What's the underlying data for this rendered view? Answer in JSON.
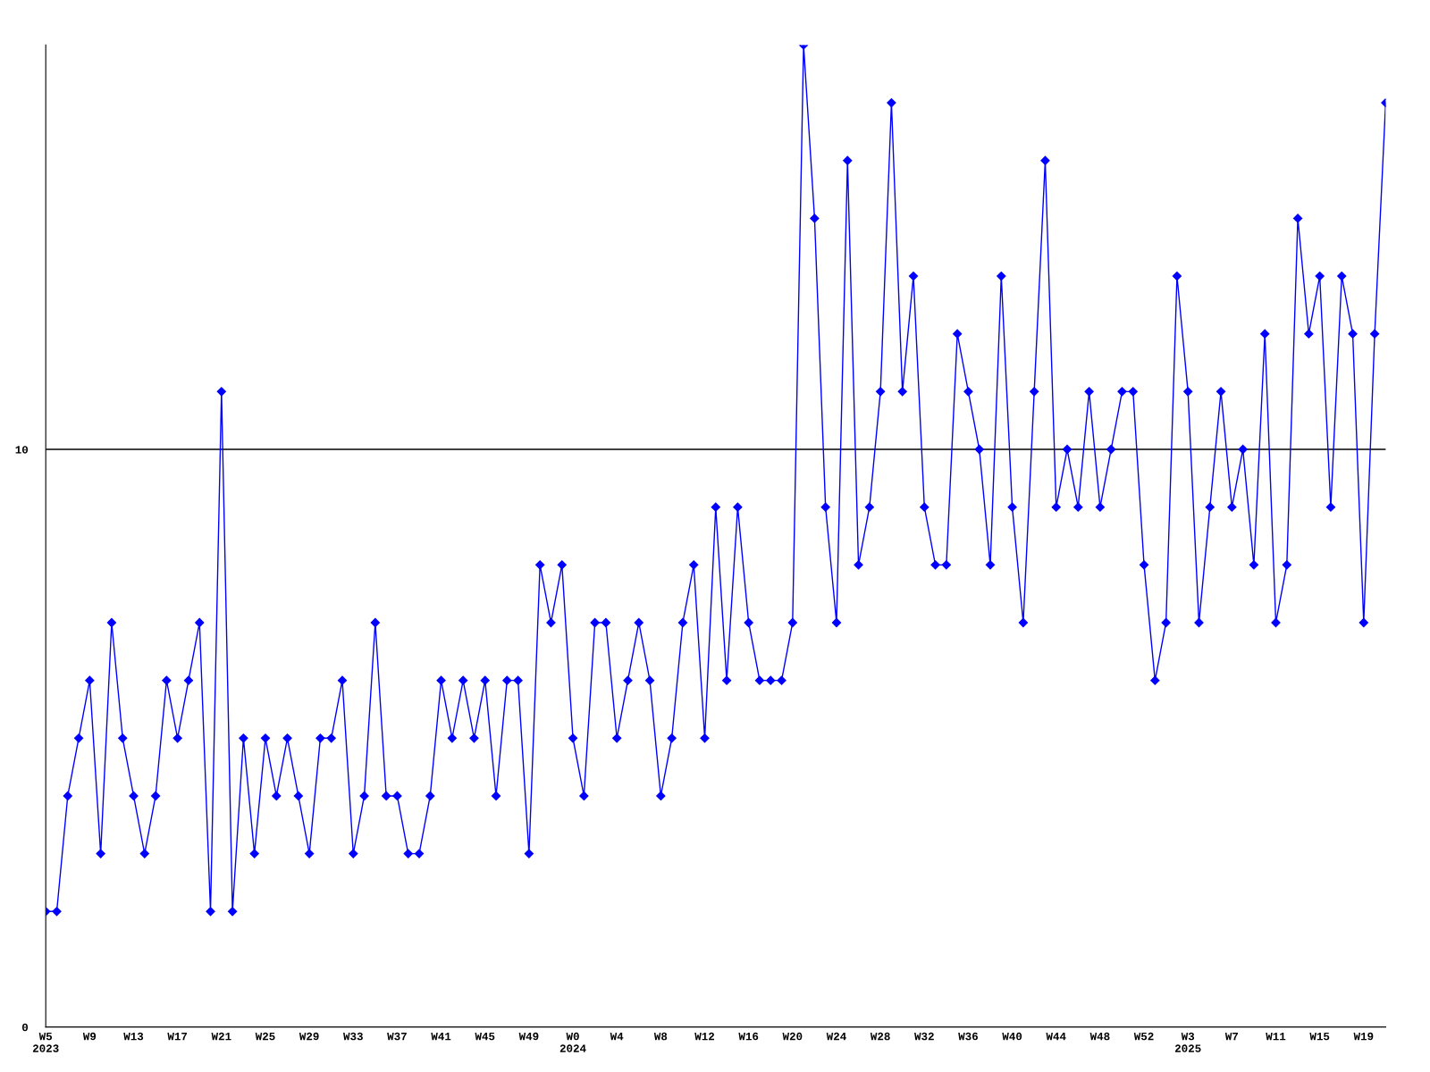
{
  "chart_data": {
    "type": "line",
    "categories": [
      "W5\n2023",
      null,
      null,
      null,
      "W9",
      null,
      null,
      null,
      "W13",
      null,
      null,
      null,
      "W17",
      null,
      null,
      null,
      "W21",
      null,
      null,
      null,
      "W25",
      null,
      null,
      null,
      "W29",
      null,
      null,
      null,
      "W33",
      null,
      null,
      null,
      "W37",
      null,
      null,
      null,
      "W41",
      null,
      null,
      null,
      "W45",
      null,
      null,
      null,
      "W49",
      null,
      null,
      null,
      "W0\n2024",
      null,
      null,
      null,
      "W4",
      null,
      null,
      null,
      "W8",
      null,
      null,
      null,
      "W12",
      null,
      null,
      null,
      "W16",
      null,
      null,
      null,
      "W20",
      null,
      null,
      null,
      "W24",
      null,
      null,
      null,
      "W28",
      null,
      null,
      null,
      "W32",
      null,
      null,
      null,
      "W36",
      null,
      null,
      null,
      "W40",
      null,
      null,
      null,
      "W44",
      null,
      null,
      null,
      "W48",
      null,
      null,
      null,
      "W52",
      null,
      null,
      null,
      "W3\n2025",
      null,
      null,
      null,
      "W7",
      null,
      null,
      null,
      "W11",
      null,
      null,
      null,
      "W15",
      null,
      null,
      null,
      "W19",
      null,
      null
    ],
    "series": [
      {
        "color": "#0000ff",
        "values": [
          2,
          2,
          4,
          5,
          6,
          3,
          7,
          5,
          4,
          3,
          4,
          6,
          5,
          6,
          7,
          2,
          11,
          2,
          5,
          3,
          5,
          4,
          5,
          4,
          3,
          5,
          5,
          6,
          3,
          4,
          7,
          4,
          4,
          3,
          3,
          4,
          6,
          5,
          6,
          5,
          6,
          4,
          6,
          6,
          3,
          8,
          7,
          8,
          5,
          4,
          7,
          7,
          5,
          6,
          7,
          6,
          4,
          5,
          7,
          8,
          5,
          9,
          6,
          9,
          7,
          6,
          6,
          6,
          7,
          17,
          14,
          9,
          7,
          15,
          8,
          9,
          11,
          16,
          11,
          13,
          9,
          8,
          8,
          12,
          11,
          10,
          8,
          13,
          9,
          7,
          11,
          15,
          9,
          10,
          9,
          11,
          9,
          10,
          11,
          11,
          8,
          6,
          7,
          13,
          11,
          7,
          9,
          11,
          9,
          10,
          8,
          12,
          7,
          8,
          14,
          12,
          13,
          9,
          13,
          12,
          7,
          12,
          16
        ]
      }
    ],
    "ylim": [
      0,
      17
    ],
    "yticks": [
      0,
      10
    ],
    "grid": "y",
    "marker": "diamond",
    "line_style": "solid"
  }
}
